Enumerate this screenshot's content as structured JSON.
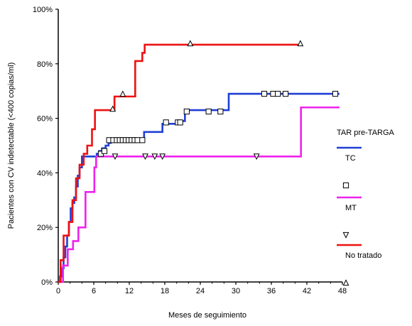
{
  "chart_data": {
    "type": "line",
    "step": true,
    "xlabel": "Meses de seguimiento",
    "ylabel": "Pacientes con CV indetectable (<400 copias/ml)",
    "xlim": [
      0,
      48
    ],
    "ylim": [
      0,
      100
    ],
    "x_ticks": [
      0,
      6,
      12,
      18,
      24,
      30,
      36,
      42,
      48
    ],
    "y_ticks": [
      0,
      20,
      40,
      60,
      80,
      100
    ],
    "y_tick_labels": [
      "0%",
      "20%",
      "40%",
      "60%",
      "80%",
      "100%"
    ],
    "legend": {
      "title": "TAR pre-TARGA",
      "placement": "right",
      "entries": [
        "TC",
        "MT",
        "No tratado"
      ]
    },
    "series": [
      {
        "name": "TC",
        "color": "#1f3fd6",
        "censor_marker": "square",
        "x": [
          0,
          0.3,
          0.6,
          0.9,
          1.2,
          1.5,
          1.8,
          2.1,
          2.4,
          2.7,
          3.0,
          3.3,
          3.6,
          4.0,
          6.5,
          6.9,
          7.4,
          8.0,
          8.5,
          8.9,
          9.6,
          14.5,
          17.6,
          20.6,
          21.4,
          28.8,
          47.5
        ],
        "y": [
          0,
          2,
          5,
          9,
          13,
          17,
          22,
          27,
          29,
          31,
          35,
          39,
          42,
          46,
          47,
          48,
          49,
          50,
          51,
          52,
          52,
          55,
          58,
          59,
          63,
          69,
          69
        ],
        "censored": {
          "x": [
            7.2,
            7.8,
            8.6,
            9.3,
            9.9,
            10.4,
            10.9,
            11.4,
            11.9,
            12.4,
            12.9,
            13.4,
            14.2,
            18.2,
            20.2,
            20.6,
            21.7,
            25.4,
            27.4,
            34.8,
            36.3,
            37.1,
            38.4,
            46.8
          ],
          "y": [
            47,
            48,
            52,
            52,
            52,
            52,
            52,
            52,
            52,
            52,
            52,
            52,
            52,
            58.5,
            58.5,
            58.5,
            62.5,
            62.5,
            62.5,
            69,
            69,
            69,
            69,
            69
          ]
        }
      },
      {
        "name": "MT",
        "color": "#ee22ee",
        "censor_marker": "triangle-down",
        "x": [
          0,
          0.8,
          1.6,
          2.5,
          3.4,
          4.6,
          6.1,
          6.4,
          41,
          47.5
        ],
        "y": [
          0,
          6,
          12,
          15,
          20,
          33,
          42,
          46,
          64,
          64
        ],
        "censored": {
          "x": [
            9.6,
            14.7,
            16.3,
            17.6,
            33.5
          ],
          "y": [
            46,
            46,
            46,
            46,
            46
          ]
        }
      },
      {
        "name": "No tratado",
        "color": "#ee1111",
        "censor_marker": "triangle-up",
        "x": [
          0,
          0.4,
          0.9,
          1.8,
          2.4,
          3.0,
          3.6,
          4.3,
          4.9,
          5.7,
          6.2,
          9.5,
          13.0,
          14.2,
          14.6,
          41
        ],
        "y": [
          0,
          8,
          17,
          22,
          30,
          38,
          43,
          47,
          50,
          56,
          63,
          68,
          81,
          84,
          87,
          87
        ],
        "censored": {
          "x": [
            9.2,
            10.9,
            22.3,
            40.9
          ],
          "y": [
            63.5,
            69,
            87.5,
            87.5
          ]
        }
      }
    ]
  }
}
